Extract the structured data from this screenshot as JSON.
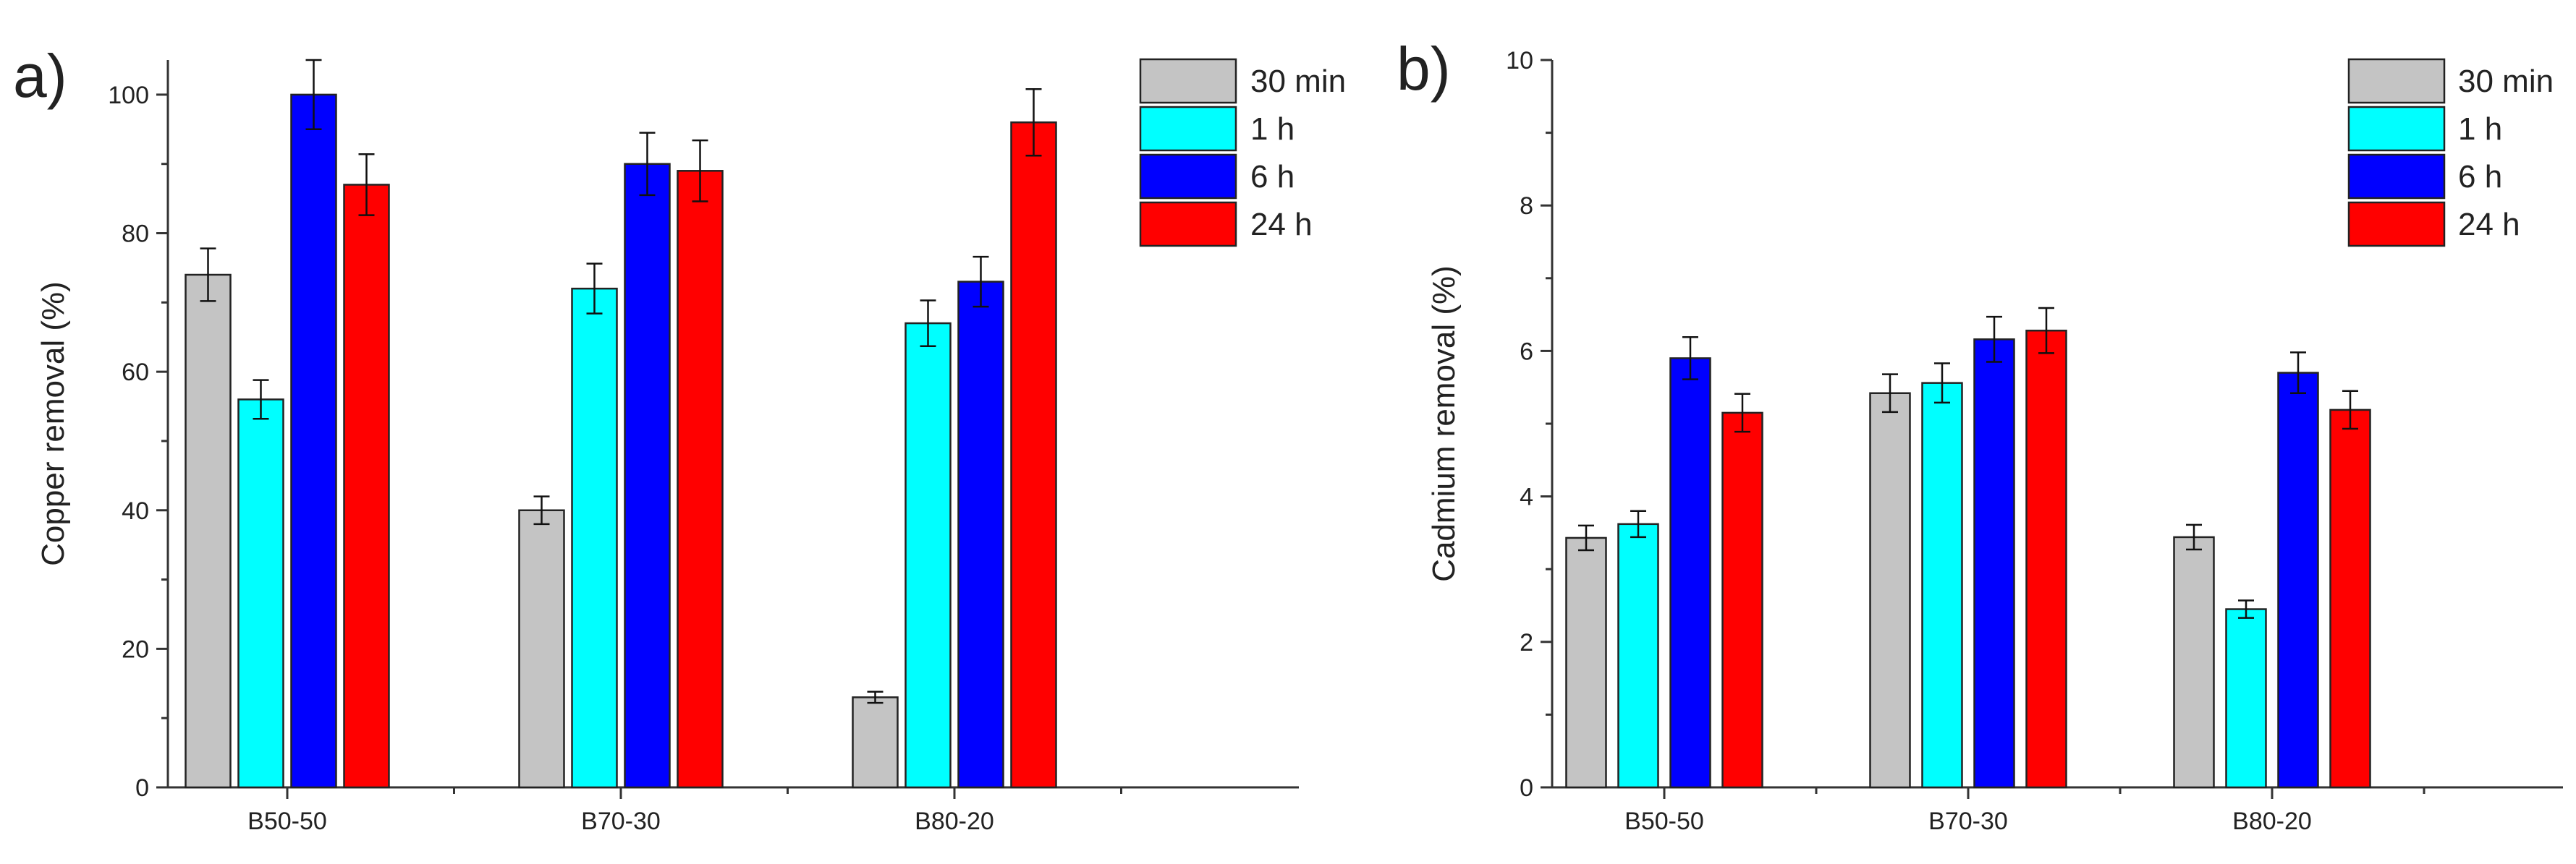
{
  "colors": {
    "30 min": "#c4c4c4",
    "1 h": "#00ffff",
    "6 h": "#0000ff",
    "24 h": "#ff0000",
    "axis": "#333333"
  },
  "chart_data": [
    {
      "type": "bar",
      "panel_label": "a)",
      "title": "",
      "xlabel": "",
      "ylabel": "Copper removal (%)",
      "categories": [
        "B50-50",
        "B70-30",
        "B80-20"
      ],
      "ylim": [
        0,
        105
      ],
      "yticks": [
        0,
        20,
        40,
        60,
        80,
        100
      ],
      "legend_position": "top-right",
      "series": [
        {
          "name": "30 min",
          "values": [
            74,
            40,
            13
          ],
          "errors": [
            3.8,
            2.0,
            0.8
          ]
        },
        {
          "name": "1 h",
          "values": [
            56,
            72,
            67
          ],
          "errors": [
            2.8,
            3.6,
            3.3
          ]
        },
        {
          "name": "6 h",
          "values": [
            100,
            90,
            73
          ],
          "errors": [
            5.0,
            4.5,
            3.6
          ]
        },
        {
          "name": "24 h",
          "values": [
            87,
            89,
            96
          ],
          "errors": [
            4.4,
            4.4,
            4.8
          ]
        }
      ]
    },
    {
      "type": "bar",
      "panel_label": "b)",
      "title": "",
      "xlabel": "",
      "ylabel": "Cadmium removal (%)",
      "categories": [
        "B50-50",
        "B70-30",
        "B80-20"
      ],
      "ylim": [
        0,
        10
      ],
      "yticks": [
        0,
        2,
        4,
        6,
        8,
        10
      ],
      "legend_position": "top-right",
      "series": [
        {
          "name": "30 min",
          "values": [
            3.43,
            5.42,
            3.44
          ],
          "errors": [
            0.17,
            0.26,
            0.17
          ]
        },
        {
          "name": "1 h",
          "values": [
            3.62,
            5.56,
            2.45
          ],
          "errors": [
            0.18,
            0.27,
            0.12
          ]
        },
        {
          "name": "6 h",
          "values": [
            5.9,
            6.16,
            5.7
          ],
          "errors": [
            0.29,
            0.31,
            0.28
          ]
        },
        {
          "name": "24 h",
          "values": [
            5.15,
            6.28,
            5.19
          ],
          "errors": [
            0.26,
            0.31,
            0.26
          ]
        }
      ]
    }
  ]
}
